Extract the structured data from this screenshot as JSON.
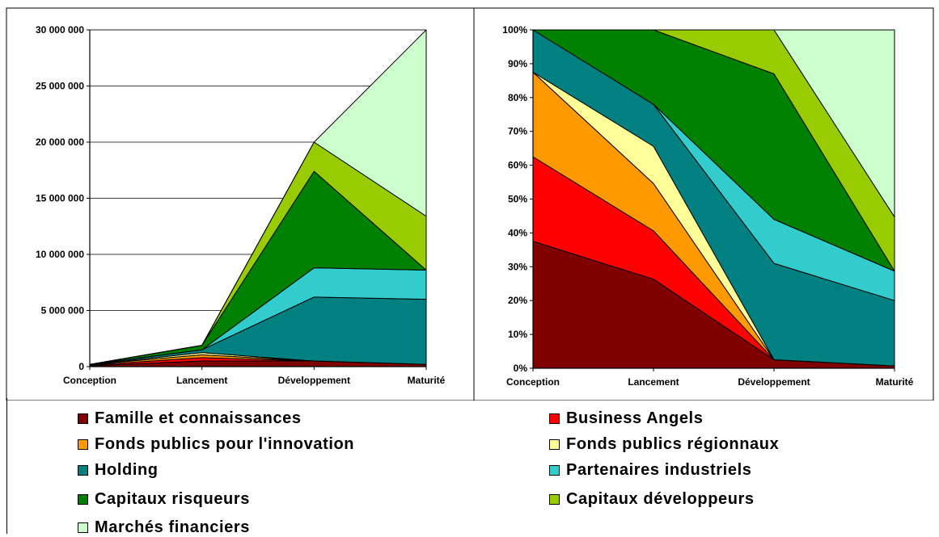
{
  "chart_data": [
    {
      "type": "area",
      "stacked": true,
      "categories": [
        "Conception",
        "Lancement",
        "Développement",
        "Maturité"
      ],
      "ylim": [
        0,
        30000000
      ],
      "yticks": [
        "0",
        "5 000 000",
        "10 000 000",
        "15 000 000",
        "20 000 000",
        "25 000 000",
        "30 000 000"
      ],
      "grid": true,
      "series": [
        {
          "name": "Famille et connaissances",
          "values": [
            75000,
            500000,
            500000,
            200000
          ]
        },
        {
          "name": "Business Angels",
          "values": [
            50000,
            300000,
            0,
            0
          ]
        },
        {
          "name": "Fonds publics pour l'innovation",
          "values": [
            50000,
            250000,
            0,
            0
          ]
        },
        {
          "name": "Fonds publics régionnaux",
          "values": [
            0,
            200000,
            0,
            0
          ]
        },
        {
          "name": "Holding",
          "values": [
            25000,
            250000,
            5700000,
            5800000
          ]
        },
        {
          "name": "Partenaires industriels",
          "values": [
            0,
            0,
            2600000,
            2600000
          ]
        },
        {
          "name": "Capitaux risqueurs",
          "values": [
            0,
            400000,
            8600000,
            0
          ]
        },
        {
          "name": "Capitaux développeurs",
          "values": [
            0,
            0,
            2600000,
            4800000
          ]
        },
        {
          "name": "Marchés financiers",
          "values": [
            0,
            0,
            0,
            16600000
          ]
        }
      ]
    },
    {
      "type": "area",
      "stacked": true,
      "percent": true,
      "categories": [
        "Conception",
        "Lancement",
        "Développement",
        "Maturité"
      ],
      "ylim": [
        0,
        100
      ],
      "yticks": [
        "0%",
        "10%",
        "20%",
        "30%",
        "40%",
        "50%",
        "60%",
        "70%",
        "80%",
        "90%",
        "100%"
      ],
      "grid": false,
      "series": [
        {
          "name": "Famille et connaissances",
          "values": [
            37.5,
            26.3,
            2.5,
            0.7
          ]
        },
        {
          "name": "Business Angels",
          "values": [
            25,
            14.3,
            0,
            0
          ]
        },
        {
          "name": "Fonds publics pour l'innovation",
          "values": [
            25,
            14,
            0,
            0
          ]
        },
        {
          "name": "Fonds publics régionnaux",
          "values": [
            0,
            11,
            0,
            0
          ]
        },
        {
          "name": "Holding",
          "values": [
            12.5,
            12.4,
            28.5,
            19.3
          ]
        },
        {
          "name": "Partenaires industriels",
          "values": [
            0,
            0,
            13,
            8.7
          ]
        },
        {
          "name": "Capitaux risqueurs",
          "values": [
            0,
            22,
            43,
            0
          ]
        },
        {
          "name": "Capitaux développeurs",
          "values": [
            0,
            0,
            13,
            16
          ]
        },
        {
          "name": "Marchés financiers",
          "values": [
            0,
            0,
            0,
            55.3
          ]
        }
      ]
    }
  ],
  "legend": {
    "items": [
      {
        "label": "Famille et connaissances",
        "color": "#800000"
      },
      {
        "label": "Business Angels",
        "color": "#ff0000"
      },
      {
        "label": "Fonds publics pour l'innovation",
        "color": "#ff9900"
      },
      {
        "label": "Fonds publics régionnaux",
        "color": "#ffff99"
      },
      {
        "label": "Holding",
        "color": "#008080"
      },
      {
        "label": "Partenaires industriels",
        "color": "#33cccc"
      },
      {
        "label": "Capitaux risqueurs",
        "color": "#008000"
      },
      {
        "label": "Capitaux développeurs",
        "color": "#99cc00"
      },
      {
        "label": "Marchés financiers",
        "color": "#ccffcc"
      }
    ]
  }
}
